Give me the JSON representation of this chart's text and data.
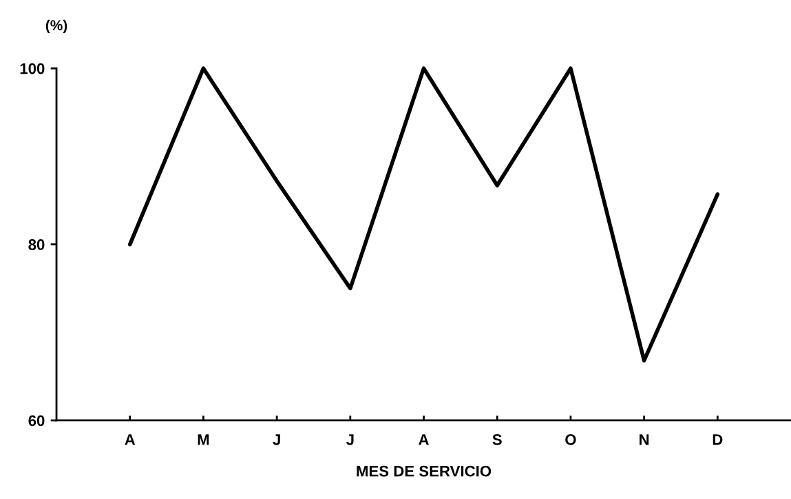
{
  "chart_data": {
    "type": "line",
    "ylabel": "(%)",
    "xlabel": "MES DE SERVICIO",
    "categories": [
      "A",
      "M",
      "J",
      "J",
      "A",
      "S",
      "O",
      "N",
      "D"
    ],
    "series": [
      {
        "color": "#000000",
        "values": [
          80,
          100,
          87.2,
          75,
          100,
          86.7,
          100,
          66.8,
          85.7
        ]
      }
    ],
    "ylim": [
      60,
      100
    ],
    "yticks": [
      60,
      80,
      100
    ],
    "marker": "none",
    "line_style": "solid"
  }
}
